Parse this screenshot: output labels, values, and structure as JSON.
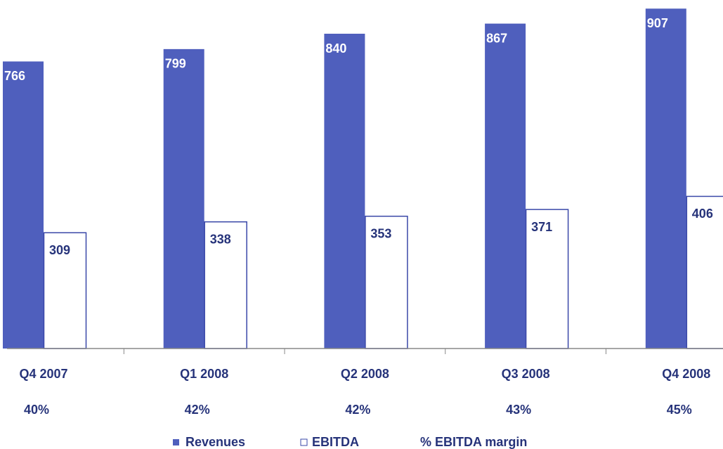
{
  "chart_data": {
    "type": "bar",
    "categories": [
      "Q4 2007",
      "Q1 2008",
      "Q2 2008",
      "Q3 2008",
      "Q4 2008"
    ],
    "series": [
      {
        "name": "Revenues",
        "color": "#4f5fbd",
        "values": [
          766,
          799,
          840,
          867,
          907
        ]
      },
      {
        "name": "EBITDA",
        "color": "#ffffff",
        "values": [
          309,
          338,
          353,
          371,
          406
        ]
      },
      {
        "name": "% EBITDA margin",
        "values": [
          40,
          42,
          42,
          43,
          45
        ],
        "value_labels": [
          "40%",
          "42%",
          "42%",
          "43%",
          "45%"
        ]
      }
    ],
    "ylim": [
      0,
      930
    ]
  }
}
